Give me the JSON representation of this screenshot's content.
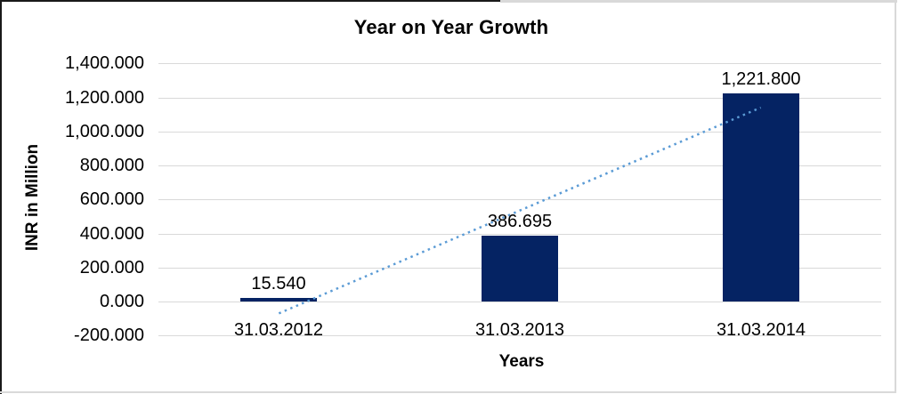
{
  "chart_data": {
    "type": "bar",
    "title": "Year on Year Growth",
    "xlabel": "Years",
    "ylabel": "INR in Million",
    "categories": [
      "31.03.2012",
      "31.03.2013",
      "31.03.2014"
    ],
    "values": [
      15.54,
      386.695,
      1221.8
    ],
    "value_labels": [
      "15.540",
      "386.695",
      "1,221.800"
    ],
    "y_ticks": [
      {
        "value": 1400,
        "label": "1,400.000"
      },
      {
        "value": 1200,
        "label": "1,200.000"
      },
      {
        "value": 1000,
        "label": "1,000.000"
      },
      {
        "value": 800,
        "label": "800.000"
      },
      {
        "value": 600,
        "label": "600.000"
      },
      {
        "value": 400,
        "label": "400.000"
      },
      {
        "value": 200,
        "label": "200.000"
      },
      {
        "value": 0,
        "label": "0.000"
      },
      {
        "value": -200,
        "label": "-200.000"
      }
    ],
    "ylim": [
      -200,
      1400
    ],
    "grid": true,
    "legend": "none",
    "bar_color": "#052363",
    "gridline_color": "#d9d9d9",
    "trendline": {
      "type": "linear",
      "style": "dotted",
      "color": "#5b9bd5",
      "start_value": -70,
      "end_value": 1140
    }
  }
}
